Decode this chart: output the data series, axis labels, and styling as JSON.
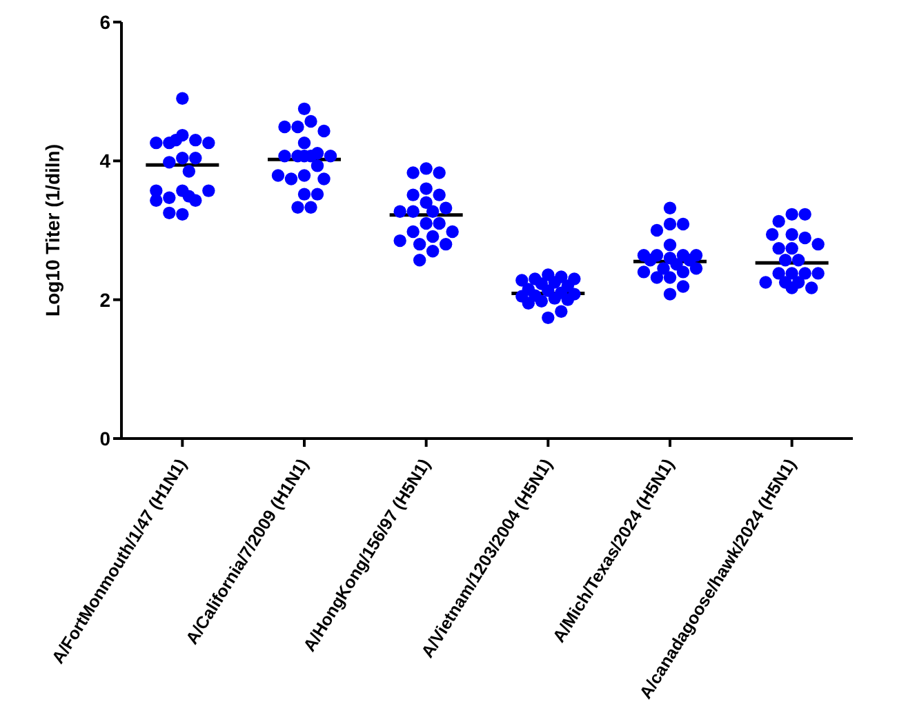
{
  "chart_data": {
    "type": "scatter",
    "ylabel": "Log10 Titer (1/diln)",
    "categories": [
      "A/FortMonmouth/1/47 (H1N1)",
      "A/California/7/2009 (H1N1)",
      "A/HongKong/156/97 (H5N1)",
      "A/Vietnam/1203/2004 (H5N1)",
      "A/Mich/Texas/2024 (H5N1)",
      "A/canadagoose/hawk/2024 (H5N1)"
    ],
    "ylim": [
      0,
      6
    ],
    "yticks": [
      0,
      2,
      4,
      6
    ],
    "grid": false,
    "legend": false,
    "marker": "circle",
    "series": [
      {
        "color": "#0000ff",
        "x": [
          "A/FortMonmouth/1/47 (H1N1)",
          "A/FortMonmouth/1/47 (H1N1)",
          "A/FortMonmouth/1/47 (H1N1)",
          "A/FortMonmouth/1/47 (H1N1)",
          "A/FortMonmouth/1/47 (H1N1)",
          "A/FortMonmouth/1/47 (H1N1)",
          "A/FortMonmouth/1/47 (H1N1)",
          "A/FortMonmouth/1/47 (H1N1)",
          "A/FortMonmouth/1/47 (H1N1)",
          "A/FortMonmouth/1/47 (H1N1)",
          "A/FortMonmouth/1/47 (H1N1)",
          "A/FortMonmouth/1/47 (H1N1)",
          "A/FortMonmouth/1/47 (H1N1)",
          "A/FortMonmouth/1/47 (H1N1)",
          "A/FortMonmouth/1/47 (H1N1)",
          "A/FortMonmouth/1/47 (H1N1)",
          "A/FortMonmouth/1/47 (H1N1)",
          "A/FortMonmouth/1/47 (H1N1)",
          "A/FortMonmouth/1/47 (H1N1)",
          "A/FortMonmouth/1/47 (H1N1)",
          "A/California/7/2009 (H1N1)",
          "A/California/7/2009 (H1N1)",
          "A/California/7/2009 (H1N1)",
          "A/California/7/2009 (H1N1)",
          "A/California/7/2009 (H1N1)",
          "A/California/7/2009 (H1N1)",
          "A/California/7/2009 (H1N1)",
          "A/California/7/2009 (H1N1)",
          "A/California/7/2009 (H1N1)",
          "A/California/7/2009 (H1N1)",
          "A/California/7/2009 (H1N1)",
          "A/California/7/2009 (H1N1)",
          "A/California/7/2009 (H1N1)",
          "A/California/7/2009 (H1N1)",
          "A/California/7/2009 (H1N1)",
          "A/California/7/2009 (H1N1)",
          "A/California/7/2009 (H1N1)",
          "A/California/7/2009 (H1N1)",
          "A/California/7/2009 (H1N1)",
          "A/California/7/2009 (H1N1)",
          "A/California/7/2009 (H1N1)",
          "A/HongKong/156/97 (H5N1)",
          "A/HongKong/156/97 (H5N1)",
          "A/HongKong/156/97 (H5N1)",
          "A/HongKong/156/97 (H5N1)",
          "A/HongKong/156/97 (H5N1)",
          "A/HongKong/156/97 (H5N1)",
          "A/HongKong/156/97 (H5N1)",
          "A/HongKong/156/97 (H5N1)",
          "A/HongKong/156/97 (H5N1)",
          "A/HongKong/156/97 (H5N1)",
          "A/HongKong/156/97 (H5N1)",
          "A/HongKong/156/97 (H5N1)",
          "A/HongKong/156/97 (H5N1)",
          "A/HongKong/156/97 (H5N1)",
          "A/HongKong/156/97 (H5N1)",
          "A/HongKong/156/97 (H5N1)",
          "A/HongKong/156/97 (H5N1)",
          "A/HongKong/156/97 (H5N1)",
          "A/HongKong/156/97 (H5N1)",
          "A/HongKong/156/97 (H5N1)",
          "A/HongKong/156/97 (H5N1)",
          "A/Vietnam/1203/2004 (H5N1)",
          "A/Vietnam/1203/2004 (H5N1)",
          "A/Vietnam/1203/2004 (H5N1)",
          "A/Vietnam/1203/2004 (H5N1)",
          "A/Vietnam/1203/2004 (H5N1)",
          "A/Vietnam/1203/2004 (H5N1)",
          "A/Vietnam/1203/2004 (H5N1)",
          "A/Vietnam/1203/2004 (H5N1)",
          "A/Vietnam/1203/2004 (H5N1)",
          "A/Vietnam/1203/2004 (H5N1)",
          "A/Vietnam/1203/2004 (H5N1)",
          "A/Vietnam/1203/2004 (H5N1)",
          "A/Vietnam/1203/2004 (H5N1)",
          "A/Vietnam/1203/2004 (H5N1)",
          "A/Vietnam/1203/2004 (H5N1)",
          "A/Vietnam/1203/2004 (H5N1)",
          "A/Vietnam/1203/2004 (H5N1)",
          "A/Vietnam/1203/2004 (H5N1)",
          "A/Vietnam/1203/2004 (H5N1)",
          "A/Vietnam/1203/2004 (H5N1)",
          "A/Mich/Texas/2024 (H5N1)",
          "A/Mich/Texas/2024 (H5N1)",
          "A/Mich/Texas/2024 (H5N1)",
          "A/Mich/Texas/2024 (H5N1)",
          "A/Mich/Texas/2024 (H5N1)",
          "A/Mich/Texas/2024 (H5N1)",
          "A/Mich/Texas/2024 (H5N1)",
          "A/Mich/Texas/2024 (H5N1)",
          "A/Mich/Texas/2024 (H5N1)",
          "A/Mich/Texas/2024 (H5N1)",
          "A/Mich/Texas/2024 (H5N1)",
          "A/Mich/Texas/2024 (H5N1)",
          "A/Mich/Texas/2024 (H5N1)",
          "A/Mich/Texas/2024 (H5N1)",
          "A/Mich/Texas/2024 (H5N1)",
          "A/Mich/Texas/2024 (H5N1)",
          "A/Mich/Texas/2024 (H5N1)",
          "A/Mich/Texas/2024 (H5N1)",
          "A/Mich/Texas/2024 (H5N1)",
          "A/Mich/Texas/2024 (H5N1)",
          "A/Mich/Texas/2024 (H5N1)",
          "A/canadagoose/hawk/2024 (H5N1)",
          "A/canadagoose/hawk/2024 (H5N1)",
          "A/canadagoose/hawk/2024 (H5N1)",
          "A/canadagoose/hawk/2024 (H5N1)",
          "A/canadagoose/hawk/2024 (H5N1)",
          "A/canadagoose/hawk/2024 (H5N1)",
          "A/canadagoose/hawk/2024 (H5N1)",
          "A/canadagoose/hawk/2024 (H5N1)",
          "A/canadagoose/hawk/2024 (H5N1)",
          "A/canadagoose/hawk/2024 (H5N1)",
          "A/canadagoose/hawk/2024 (H5N1)",
          "A/canadagoose/hawk/2024 (H5N1)",
          "A/canadagoose/hawk/2024 (H5N1)",
          "A/canadagoose/hawk/2024 (H5N1)",
          "A/canadagoose/hawk/2024 (H5N1)",
          "A/canadagoose/hawk/2024 (H5N1)",
          "A/canadagoose/hawk/2024 (H5N1)",
          "A/canadagoose/hawk/2024 (H5N1)",
          "A/canadagoose/hawk/2024 (H5N1)",
          "A/canadagoose/hawk/2024 (H5N1)"
        ],
        "values": [
          4.9,
          4.37,
          4.3,
          4.26,
          4.26,
          4.26,
          4.3,
          4.04,
          4.04,
          3.98,
          3.85,
          3.57,
          3.43,
          3.47,
          3.57,
          3.43,
          3.49,
          3.23,
          3.25,
          3.57,
          4.75,
          4.57,
          4.49,
          4.43,
          4.49,
          4.26,
          4.11,
          4.07,
          4.07,
          4.07,
          4.07,
          4.07,
          3.93,
          3.79,
          3.74,
          3.74,
          3.79,
          3.52,
          3.52,
          3.33,
          3.33,
          3.89,
          3.83,
          3.83,
          3.6,
          3.51,
          3.51,
          3.4,
          3.32,
          3.27,
          3.27,
          3.27,
          3.1,
          3.1,
          2.98,
          2.98,
          2.91,
          2.85,
          2.8,
          2.8,
          2.7,
          2.57,
          2.36,
          2.33,
          2.3,
          2.3,
          2.28,
          2.25,
          2.23,
          2.2,
          2.15,
          2.13,
          2.1,
          2.08,
          2.06,
          2.05,
          2.02,
          2.0,
          1.98,
          1.95,
          1.83,
          1.74,
          3.32,
          3.09,
          3.09,
          3.0,
          2.79,
          2.64,
          2.64,
          2.64,
          2.64,
          2.6,
          2.57,
          2.57,
          2.51,
          2.45,
          2.45,
          2.4,
          2.4,
          2.32,
          2.32,
          2.19,
          2.08,
          3.23,
          3.23,
          3.13,
          2.94,
          2.89,
          2.94,
          2.8,
          2.74,
          2.74,
          2.57,
          2.57,
          2.38,
          2.38,
          2.38,
          2.38,
          2.25,
          2.25,
          2.25,
          2.17,
          2.17
        ]
      },
      {
        "type": "box",
        "color": "#000000",
        "boxes": [
          {
            "low": 3.94,
            "q1": 3.94,
            "median": 3.94,
            "q3": 3.94,
            "high": 3.94
          },
          {
            "low": 4.02,
            "q1": 4.02,
            "median": 4.02,
            "q3": 4.02,
            "high": 4.02
          },
          {
            "low": 3.22,
            "q1": 3.22,
            "median": 3.22,
            "q3": 3.22,
            "high": 3.22
          },
          {
            "low": 2.09,
            "q1": 2.09,
            "median": 2.09,
            "q3": 2.09,
            "high": 2.09
          },
          {
            "low": 2.55,
            "q1": 2.55,
            "median": 2.55,
            "q3": 2.55,
            "high": 2.55
          },
          {
            "low": 2.53,
            "q1": 2.53,
            "median": 2.53,
            "q3": 2.53,
            "high": 2.53
          }
        ]
      }
    ]
  }
}
